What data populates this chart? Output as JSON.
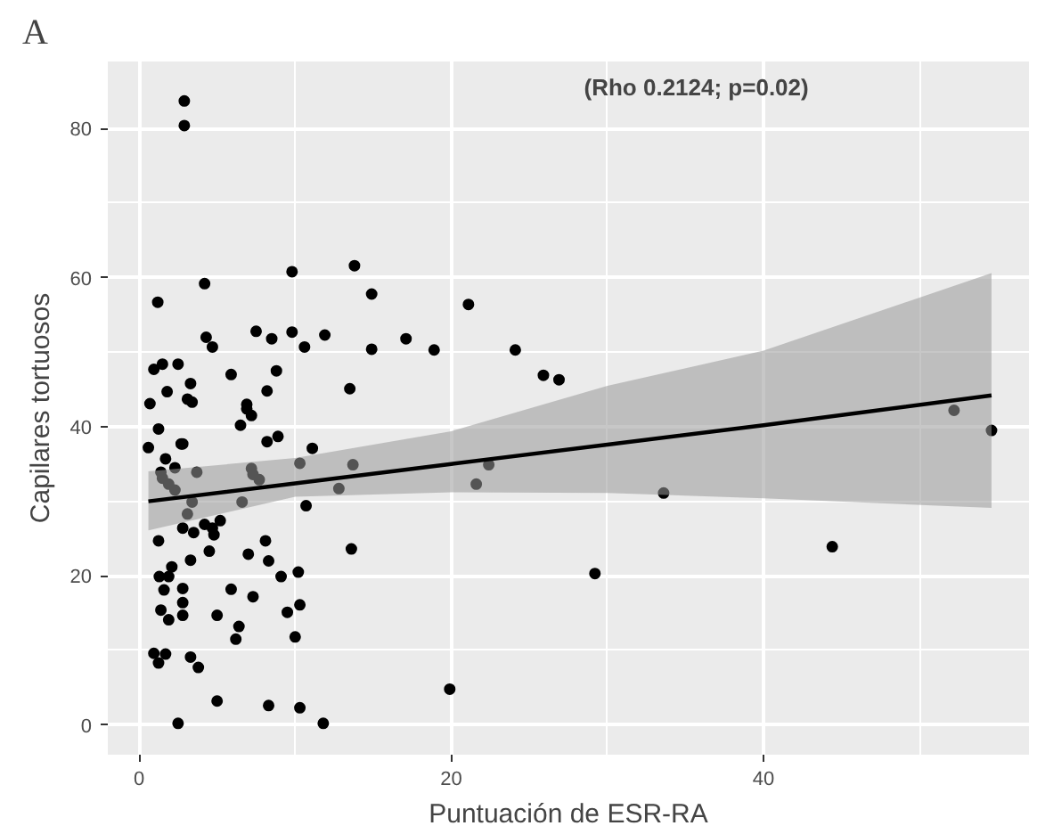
{
  "chart_data": {
    "type": "scatter",
    "title": "A",
    "xlabel": "Puntuación de ESR-RA",
    "ylabel": "Capilares tortuosos",
    "annotations": [
      "(Rho 0.2124; p=0.02)"
    ],
    "xlim": [
      -2,
      57
    ],
    "ylim": [
      -4,
      89
    ],
    "xticks": [
      0,
      20,
      40
    ],
    "yticks": [
      0,
      20,
      40,
      60,
      80
    ],
    "grid": true,
    "series": [
      {
        "color": "#000000",
        "marker": "circle",
        "x": [
          2.9,
          2.9,
          9.8,
          4.2,
          1.2,
          4.3,
          4.7,
          7.5,
          8.5,
          9.8,
          10.6,
          11.9,
          0.95,
          1.5,
          2.5,
          3.3,
          5.9,
          8.8,
          1.8,
          3.1,
          3.4,
          0.7,
          6.9,
          6.9,
          7.2,
          8.2,
          6.5,
          1.25,
          8.2,
          8.9,
          0.6,
          2.7,
          2.8,
          11.1,
          1.7,
          2.3,
          1.4,
          1.5,
          3.7,
          7.2,
          7.3,
          7.7,
          10.3,
          1.9,
          2.3,
          3.4,
          6.6,
          10.7,
          3.1,
          2.8,
          3.5,
          4.2,
          4.7,
          4.8,
          5.2,
          1.25,
          4.5,
          7.0,
          8.1,
          8.3,
          3.3,
          2.1,
          1.3,
          1.9,
          9.1,
          10.2,
          1.6,
          2.8,
          2.8,
          2.8,
          5.9,
          7.3,
          1.4,
          1.9,
          5.0,
          9.5,
          10.3,
          6.4,
          6.2,
          10.0,
          0.95,
          1.25,
          1.7,
          3.3,
          3.8,
          5.0,
          8.3,
          10.3,
          2.5,
          11.8,
          13.8,
          14.9,
          21.1,
          14.9,
          17.1,
          18.9,
          24.1,
          25.9,
          26.9,
          13.5,
          13.7,
          12.8,
          22.4,
          21.6,
          13.6,
          19.9,
          33.6,
          29.2,
          44.4,
          52.2,
          54.6
        ],
        "values": [
          83.7,
          80.4,
          60.8,
          59.2,
          56.7,
          52.0,
          50.7,
          52.8,
          51.8,
          52.7,
          50.7,
          52.3,
          47.7,
          48.4,
          48.4,
          45.8,
          47.0,
          47.5,
          44.7,
          43.7,
          43.3,
          43.1,
          43.0,
          42.4,
          41.5,
          44.8,
          40.2,
          39.7,
          38.0,
          38.7,
          37.2,
          37.7,
          37.7,
          37.1,
          35.7,
          34.5,
          33.9,
          33.1,
          33.9,
          34.4,
          33.6,
          32.9,
          35.1,
          32.3,
          31.5,
          29.9,
          29.9,
          29.4,
          28.3,
          26.4,
          25.8,
          26.9,
          26.4,
          25.5,
          27.4,
          24.7,
          23.3,
          22.9,
          24.7,
          22.0,
          22.1,
          21.2,
          19.9,
          19.9,
          19.9,
          20.5,
          18.1,
          18.3,
          16.4,
          14.7,
          18.2,
          17.2,
          15.4,
          14.1,
          14.7,
          15.1,
          16.1,
          13.2,
          11.5,
          11.8,
          9.6,
          8.3,
          9.5,
          9.1,
          7.7,
          3.2,
          2.6,
          2.3,
          0.2,
          0.2,
          61.6,
          57.8,
          56.4,
          50.4,
          51.8,
          50.3,
          50.3,
          46.9,
          46.3,
          45.1,
          34.9,
          31.7,
          34.9,
          32.3,
          23.6,
          4.8,
          31.1,
          20.3,
          23.9,
          42.2,
          39.5
        ]
      },
      {
        "type": "line",
        "color": "#000000",
        "marker": "none",
        "x": [
          0.6,
          10,
          20,
          30,
          40,
          54.6
        ],
        "values": [
          30.0,
          32.4,
          35.0,
          37.6,
          40.2,
          44.2
        ],
        "lower": [
          26.1,
          30.6,
          31.2,
          31.1,
          30.4,
          29.1
        ],
        "upper": [
          34.0,
          35.8,
          39.4,
          45.5,
          50.2,
          60.6
        ]
      }
    ]
  }
}
